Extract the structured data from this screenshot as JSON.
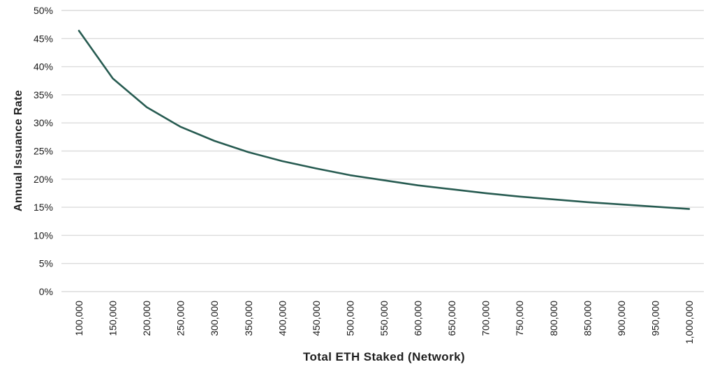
{
  "chart_data": {
    "type": "line",
    "title": "",
    "xlabel": "Total ETH Staked (Network)",
    "ylabel": "Annual Issuance Rate",
    "x_values": [
      100000,
      150000,
      200000,
      250000,
      300000,
      350000,
      400000,
      450000,
      500000,
      550000,
      600000,
      650000,
      700000,
      750000,
      800000,
      850000,
      900000,
      950000,
      1000000
    ],
    "x_tick_labels": [
      "100,000",
      "150,000",
      "200,000",
      "250,000",
      "300,000",
      "350,000",
      "400,000",
      "450,000",
      "500,000",
      "550,000",
      "600,000",
      "650,000",
      "700,000",
      "750,000",
      "800,000",
      "850,000",
      "900,000",
      "950,000",
      "1,000,000"
    ],
    "y_ticks": [
      0,
      5,
      10,
      15,
      20,
      25,
      30,
      35,
      40,
      45,
      50
    ],
    "y_tick_labels": [
      "0%",
      "5%",
      "10%",
      "15%",
      "20%",
      "25%",
      "30%",
      "35%",
      "40%",
      "45%",
      "50%"
    ],
    "ylim": [
      0,
      50
    ],
    "grid": "horizontal",
    "legend": "none",
    "series": [
      {
        "name": "Annual Issuance Rate",
        "values": [
          46.4,
          37.9,
          32.8,
          29.3,
          26.8,
          24.8,
          23.2,
          21.9,
          20.7,
          19.8,
          18.9,
          18.2,
          17.5,
          16.9,
          16.4,
          15.9,
          15.5,
          15.1,
          14.7
        ]
      }
    ],
    "colors": {
      "line": "#275b51",
      "grid": "#dcdcdc",
      "text": "#1a1a1a",
      "background": "#ffffff"
    }
  }
}
